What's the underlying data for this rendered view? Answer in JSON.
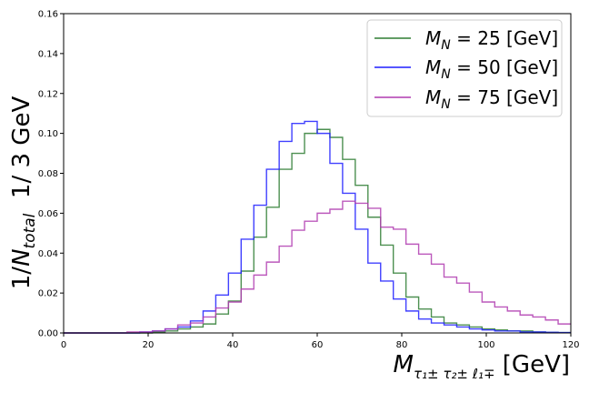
{
  "chart_data": {
    "type": "line",
    "drawstyle": "steps",
    "xlabel": "M_{τ1± τ2± ℓ1∓} [GeV]",
    "xlabel_main": "M",
    "xlabel_sub": "τ₁± τ₂± ℓ₁∓",
    "xlabel_unit": " [GeV]",
    "ylabel": "1/N_total  1/ 3 GeV",
    "ylabel_prefix": "1/",
    "ylabel_N": "N",
    "ylabel_sub": "total",
    "ylabel_suffix": "  1/ 3 GeV",
    "xlim": [
      0,
      120
    ],
    "ylim": [
      0,
      0.16
    ],
    "xticks": [
      "0",
      "20",
      "40",
      "60",
      "80",
      "100",
      "120"
    ],
    "yticks": [
      "0.00",
      "0.02",
      "0.04",
      "0.06",
      "0.08",
      "0.10",
      "0.12",
      "0.14",
      "0.16"
    ],
    "grid": false,
    "legend_position": "top-right",
    "bin_width": 3,
    "bin_edges": [
      0,
      3,
      6,
      9,
      12,
      15,
      18,
      21,
      24,
      27,
      30,
      33,
      36,
      39,
      42,
      45,
      48,
      51,
      54,
      57,
      60,
      63,
      66,
      69,
      72,
      75,
      78,
      81,
      84,
      87,
      90,
      93,
      96,
      99,
      102,
      105,
      108,
      111,
      114,
      117,
      120
    ],
    "series": [
      {
        "name": "M_N = 25 [GeV]",
        "legend_main": "M",
        "legend_sub": "N",
        "legend_rest": " = 25 [GeV]",
        "color": "#2e7d32",
        "values": [
          0,
          0,
          0,
          0,
          0,
          0,
          0,
          0.0005,
          0.001,
          0.002,
          0.003,
          0.0045,
          0.0095,
          0.016,
          0.031,
          0.048,
          0.063,
          0.082,
          0.09,
          0.1,
          0.102,
          0.098,
          0.087,
          0.074,
          0.058,
          0.044,
          0.03,
          0.018,
          0.012,
          0.008,
          0.005,
          0.004,
          0.003,
          0.002,
          0.0015,
          0.001,
          0.001,
          0.0005,
          0.0003,
          0.0002
        ]
      },
      {
        "name": "M_N = 50 [GeV]",
        "legend_main": "M",
        "legend_sub": "N",
        "legend_rest": " = 50 [GeV]",
        "color": "#1f1fff",
        "values": [
          0,
          0,
          0,
          0,
          0,
          0,
          0.0005,
          0.001,
          0.002,
          0.003,
          0.006,
          0.011,
          0.019,
          0.03,
          0.047,
          0.064,
          0.082,
          0.096,
          0.105,
          0.106,
          0.1,
          0.085,
          0.07,
          0.052,
          0.035,
          0.026,
          0.017,
          0.011,
          0.007,
          0.005,
          0.004,
          0.003,
          0.002,
          0.0015,
          0.001,
          0.001,
          0.0005,
          0.0005,
          0.0003,
          0.0002
        ]
      },
      {
        "name": "M_N = 75 [GeV]",
        "legend_main": "M",
        "legend_sub": "N",
        "legend_rest": " = 75 [GeV]",
        "color": "#b03cb0",
        "values": [
          0,
          0,
          0,
          0,
          0,
          0.0005,
          0.0005,
          0.001,
          0.002,
          0.004,
          0.005,
          0.008,
          0.0125,
          0.0155,
          0.022,
          0.029,
          0.0355,
          0.0435,
          0.0515,
          0.056,
          0.06,
          0.062,
          0.066,
          0.065,
          0.0625,
          0.053,
          0.052,
          0.0445,
          0.0395,
          0.0345,
          0.028,
          0.025,
          0.0205,
          0.0155,
          0.013,
          0.011,
          0.009,
          0.008,
          0.0065,
          0.0045
        ]
      }
    ]
  }
}
